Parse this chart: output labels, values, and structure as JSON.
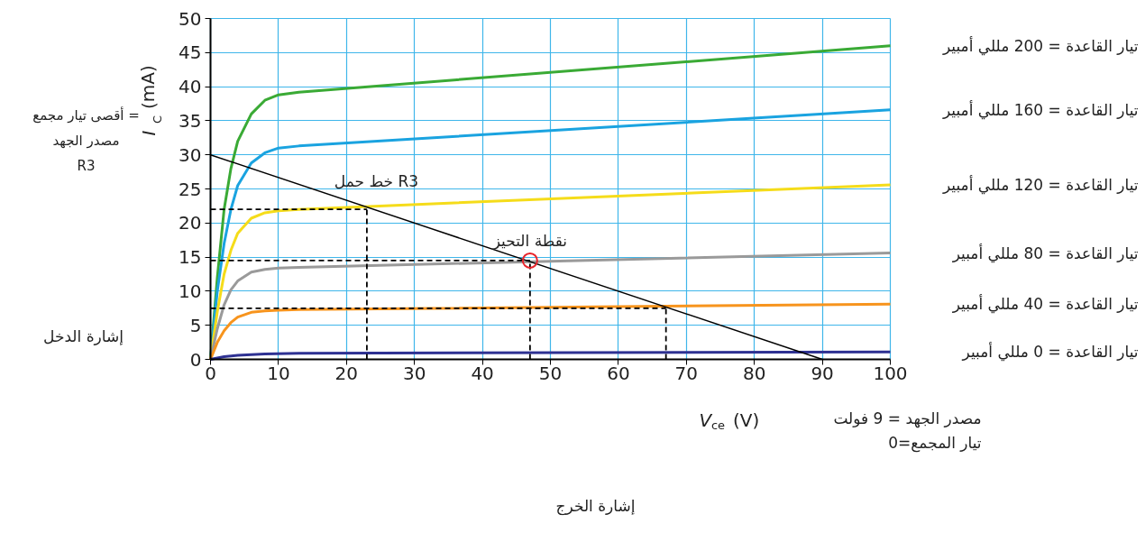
{
  "chart_data": {
    "type": "line",
    "xlabel": "V$_{ce}$ (V)",
    "ylabel": "I$_{C}$ (mA)",
    "xlim": [
      0,
      100
    ],
    "ylim": [
      0,
      50
    ],
    "xticks": [
      0,
      10,
      20,
      30,
      40,
      50,
      60,
      70,
      80,
      90,
      {
        "value": 100,
        "label": "100"
      }
    ],
    "yticks": [
      0,
      5,
      10,
      15,
      20,
      25,
      30,
      35,
      40,
      45,
      50
    ],
    "grid": true,
    "series": [
      {
        "name": "تيار القاعدة = 200 مللي أمبير",
        "color": "#3aaa35",
        "x": [
          0,
          1,
          2,
          3,
          4,
          6,
          8,
          10,
          13,
          100
        ],
        "values": [
          0,
          12,
          22,
          28,
          32,
          36,
          38,
          38.8,
          39.2,
          46
        ]
      },
      {
        "name": "تيار القاعدة = 160 مللي أمبير",
        "color": "#1aa3e0",
        "x": [
          0,
          1,
          2,
          3,
          4,
          6,
          8,
          10,
          13,
          100
        ],
        "values": [
          0,
          10,
          17,
          22,
          25.5,
          28.8,
          30.3,
          31,
          31.3,
          36.6
        ]
      },
      {
        "name": "تيار القاعدة = 120 مللي أمبير",
        "color": "#f5dc1a",
        "x": [
          0,
          1,
          2,
          3,
          4,
          6,
          8,
          10,
          13,
          100
        ],
        "values": [
          0,
          7,
          12.5,
          16,
          18.5,
          20.7,
          21.5,
          21.8,
          22,
          25.6
        ]
      },
      {
        "name": "تيار القاعدة = 80 مللي أمبير",
        "color": "#9a9a9a",
        "x": [
          0,
          1,
          2,
          3,
          4,
          6,
          8,
          10,
          13,
          100
        ],
        "values": [
          0,
          4.5,
          8,
          10.2,
          11.5,
          12.8,
          13.2,
          13.4,
          13.5,
          15.6
        ]
      },
      {
        "name": "تيار القاعدة = 40 مللي أمبير",
        "color": "#f7941d",
        "x": [
          0,
          1,
          2,
          3,
          4,
          6,
          8,
          10,
          13,
          100
        ],
        "values": [
          0,
          2.5,
          4.2,
          5.4,
          6.2,
          6.9,
          7.1,
          7.2,
          7.3,
          8.1
        ]
      },
      {
        "name": "تيار القاعدة = 0 مللي أمبير",
        "color": "#2e3192",
        "x": [
          0,
          2,
          4,
          8,
          13,
          100
        ],
        "values": [
          0,
          0.4,
          0.6,
          0.8,
          0.9,
          1.1
        ]
      },
      {
        "color": "#000000",
        "x": [
          0,
          90
        ],
        "values": [
          30,
          0
        ]
      },
      {
        "color": "#000000",
        "line_style": "dashed",
        "x": [
          0,
          23
        ],
        "values": [
          22,
          22
        ]
      },
      {
        "color": "#000000",
        "line_style": "dashed",
        "x": [
          0,
          47
        ],
        "values": [
          14.5,
          14.5
        ]
      },
      {
        "color": "#000000",
        "line_style": "dashed",
        "x": [
          0,
          67
        ],
        "values": [
          7.5,
          7.5
        ]
      },
      {
        "color": "#000000",
        "line_style": "dashed",
        "x": [
          23,
          23
        ],
        "values": [
          0,
          22
        ]
      },
      {
        "color": "#000000",
        "line_style": "dashed",
        "x": [
          47,
          47
        ],
        "values": [
          0,
          14.5
        ]
      },
      {
        "color": "#000000",
        "line_style": "dashed",
        "x": [
          67,
          67
        ],
        "values": [
          0,
          7.5
        ]
      },
      {
        "type": "scatter",
        "marker": "circle",
        "color": "#e8232a",
        "x": [
          47
        ],
        "values": [
          14.5
        ]
      }
    ],
    "annotations": [
      "خط حمل R3",
      {
        "text": "نقطة التحيز",
        "x": 47,
        "y": 14.5
      },
      "أقصى تيار مجمع =\nمصدر الجهد\nR3",
      "مصدر الجهد = 9 فولت\nتيار المجمع=0",
      "إشارة الدخل",
      "إشارة الخرج"
    ]
  }
}
